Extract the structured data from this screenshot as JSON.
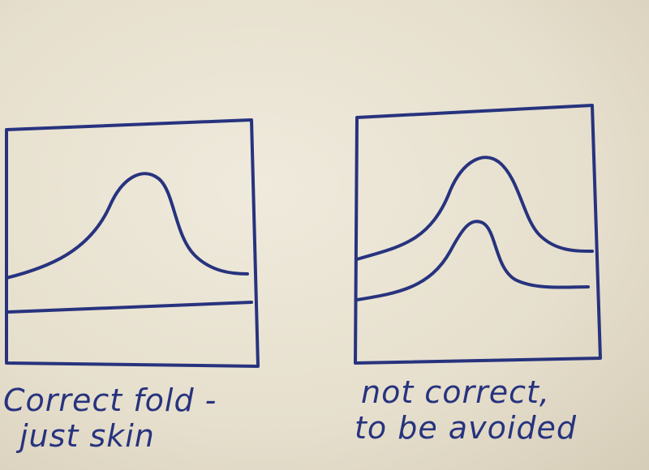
{
  "ink_color": "#27337e",
  "panels": [
    {
      "caption_line1": "Correct fold -",
      "caption_line2": "just skin",
      "curves": 1,
      "flat_lines": 1
    },
    {
      "caption_line1": "not correct,",
      "caption_line2": "to be avoided",
      "curves": 2,
      "flat_lines": 0
    }
  ]
}
